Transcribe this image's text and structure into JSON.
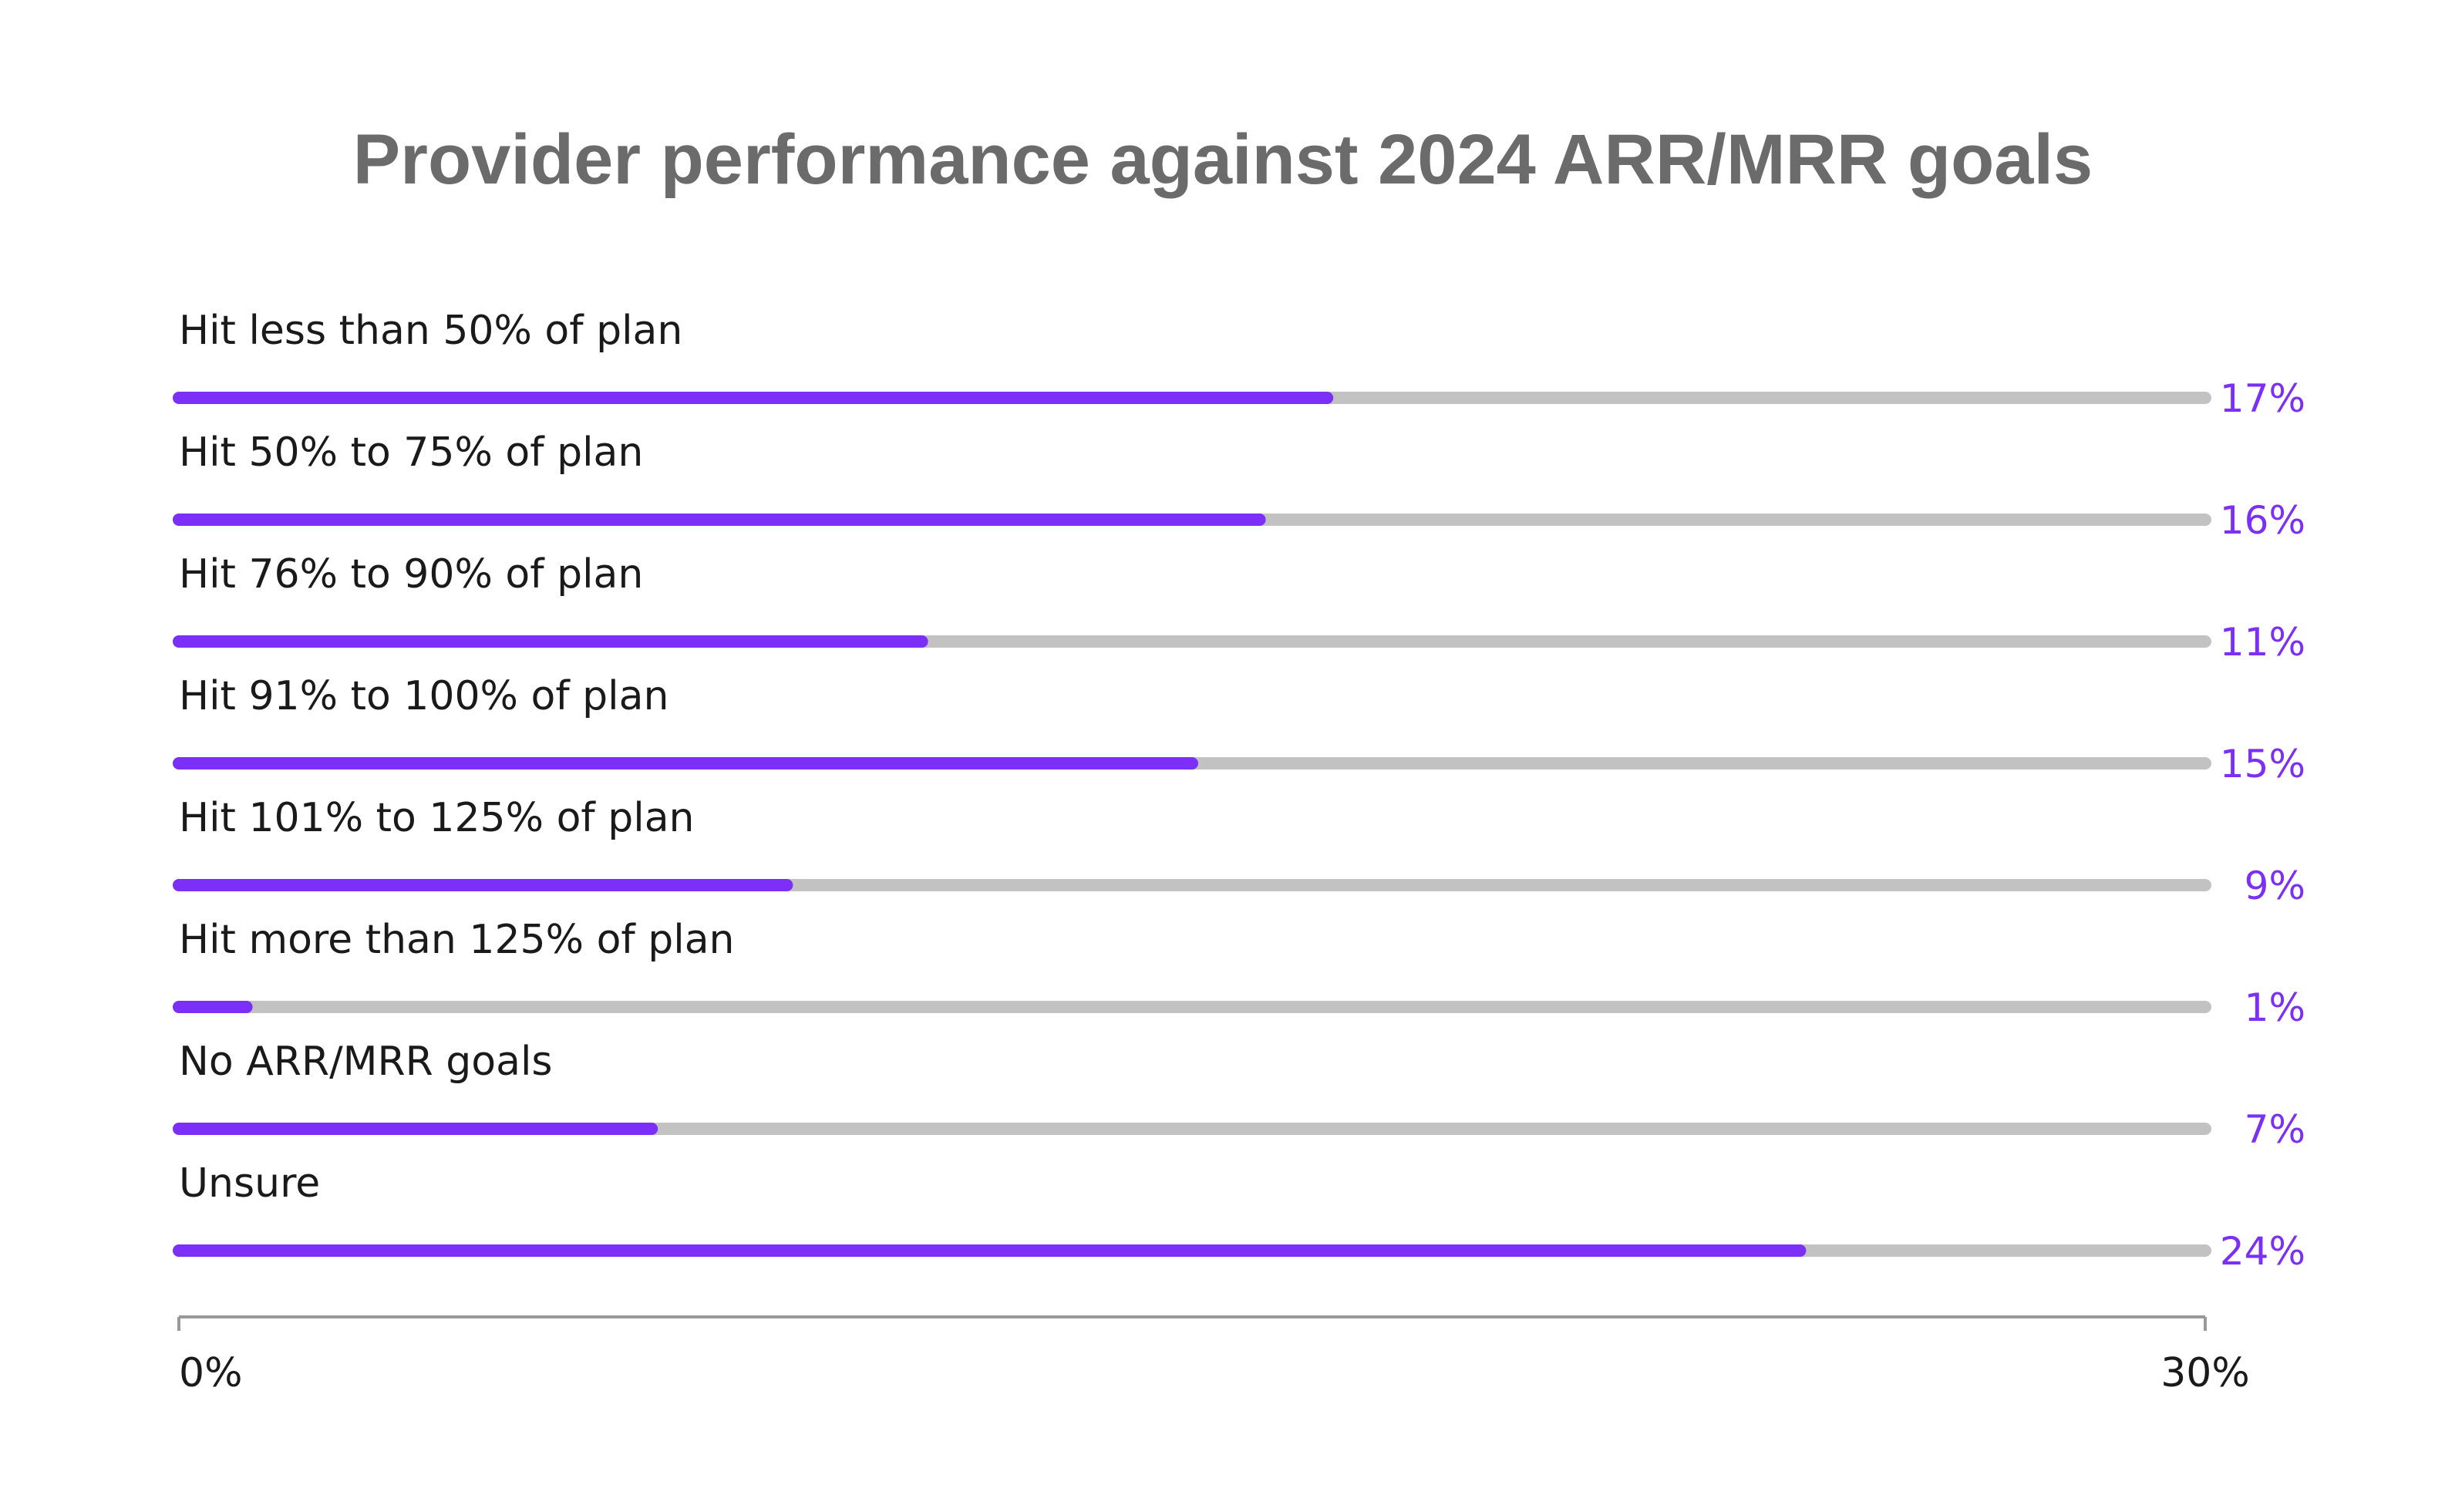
{
  "chart_data": {
    "type": "bar",
    "orientation": "horizontal",
    "title": "Provider performance against 2024 ARR/MRR goals",
    "categories": [
      "Hit less than 50% of plan",
      "Hit 50% to 75% of plan",
      "Hit 76% to 90% of plan",
      "Hit 91% to 100% of plan",
      "Hit 101% to 125% of plan",
      "Hit more than 125% of plan",
      "No ARR/MRR goals",
      "Unsure"
    ],
    "values": [
      17,
      16,
      11,
      15,
      9,
      1,
      7,
      24
    ],
    "value_labels": [
      "17%",
      "16%",
      "11%",
      "15%",
      "9%",
      "1%",
      "7%",
      "24%"
    ],
    "xlim": [
      0,
      30
    ],
    "x_ticks": [
      "0%",
      "30%"
    ],
    "xlabel": "",
    "ylabel": "",
    "grid": false,
    "legend": "none",
    "colors": {
      "bar": "#7b2ff7",
      "track": "#c2c2c2",
      "value_text": "#7b2ff7",
      "title_text": "#6b6b6b",
      "label_text": "#1a1a1a",
      "axis": "#999999"
    }
  }
}
